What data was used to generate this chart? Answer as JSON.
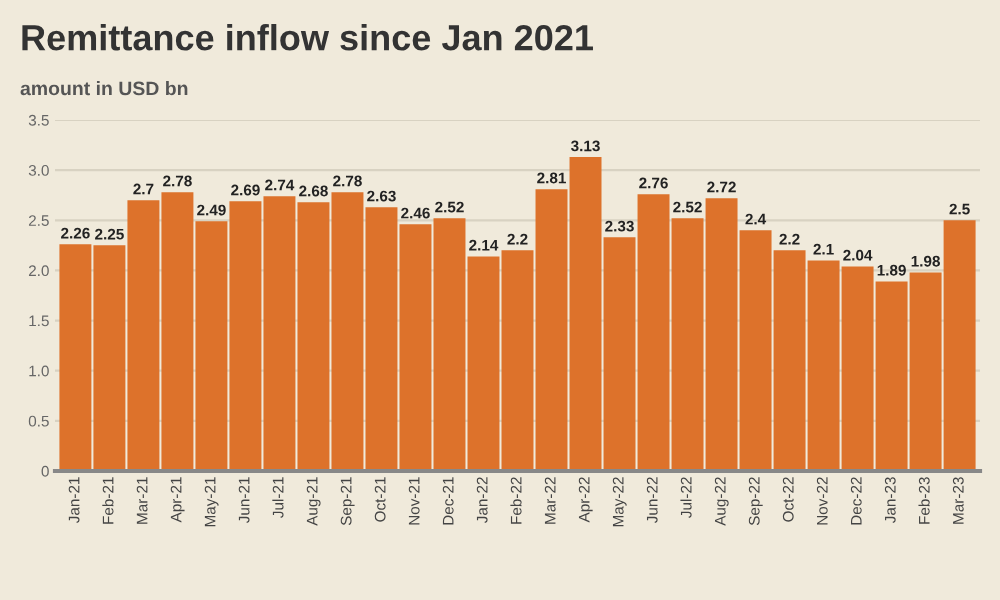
{
  "chart_data": {
    "type": "bar",
    "title": "Remittance inflow since Jan 2021",
    "subtitle": "amount in USD bn",
    "categories": [
      "Jan-21",
      "Feb-21",
      "Mar-21",
      "Apr-21",
      "May-21",
      "Jun-21",
      "Jul-21",
      "Aug-21",
      "Sep-21",
      "Oct-21",
      "Nov-21",
      "Dec-21",
      "Jan-22",
      "Feb-22",
      "Mar-22",
      "Apr-22",
      "May-22",
      "Jun-22",
      "Jul-22",
      "Aug-22",
      "Sep-22",
      "Oct-22",
      "Nov-22",
      "Dec-22",
      "Jan-23",
      "Feb-23",
      "Mar-23"
    ],
    "values": [
      2.26,
      2.25,
      2.7,
      2.78,
      2.49,
      2.69,
      2.74,
      2.68,
      2.78,
      2.63,
      2.46,
      2.52,
      2.14,
      2.2,
      2.81,
      3.13,
      2.33,
      2.76,
      2.52,
      2.72,
      2.4,
      2.2,
      2.1,
      2.04,
      1.89,
      1.98,
      2.5
    ],
    "color": "#dd722b",
    "data_labels": true,
    "ylim": [
      0,
      3.5
    ],
    "yticks": [
      0,
      0.5,
      {
        "value": 1,
        "label": "1.0"
      },
      1.5,
      {
        "value": 2,
        "label": "2.0"
      },
      2.5,
      {
        "value": 3,
        "label": "3.0"
      },
      3.5
    ],
    "grid": "y"
  }
}
